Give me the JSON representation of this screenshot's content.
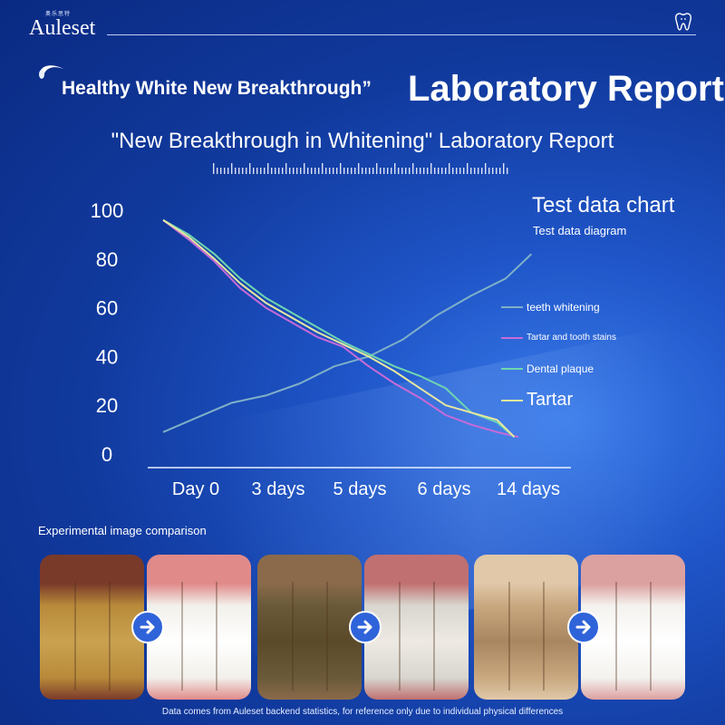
{
  "brand": {
    "logo_text": "Auleset",
    "logo_subtext": "奥乐思特"
  },
  "header": {
    "headline": "Healthy White New Breakthrough”",
    "report_title": "Laboratory Report",
    "subtitle": "\"New Breakthrough in Whitening\" Laboratory Report"
  },
  "chart_data": {
    "type": "line",
    "title": "Test data chart",
    "subtitle": "Test data diagram",
    "categories": [
      "Day 0",
      "3 days",
      "5 days",
      "6 days",
      "14 days"
    ],
    "ylim": [
      0,
      100
    ],
    "yticks": [
      "100",
      "80",
      "60",
      "40",
      "20",
      "0"
    ],
    "grid": false,
    "legend_position": "right",
    "series": [
      {
        "name": "teeth whitening",
        "color": "#7fb0c8",
        "x": [
          0,
          0.4,
          0.8,
          1.2,
          1.6,
          2.0,
          2.4,
          2.8,
          3.2,
          3.6,
          4.0,
          4.3
        ],
        "values": [
          9,
          15,
          21,
          24,
          29,
          36,
          40,
          47,
          57,
          65,
          72,
          82
        ]
      },
      {
        "name": "Tartar and tooth stains",
        "color": "#c76bd8",
        "x": [
          0,
          0.3,
          0.6,
          0.9,
          1.2,
          1.5,
          1.8,
          2.1,
          2.4,
          2.7,
          3.0,
          3.3,
          3.6,
          3.9,
          4.15
        ],
        "values": [
          96,
          88,
          79,
          68,
          60,
          54,
          48,
          44,
          36,
          29,
          23,
          16,
          12,
          9,
          7
        ]
      },
      {
        "name": "Dental plaque",
        "color": "#6fd6b0",
        "x": [
          0,
          0.3,
          0.6,
          0.9,
          1.2,
          1.5,
          1.8,
          2.1,
          2.4,
          2.7,
          3.0,
          3.3,
          3.6,
          3.9,
          4.1
        ],
        "values": [
          96,
          90,
          82,
          72,
          64,
          58,
          52,
          46,
          41,
          36,
          32,
          27,
          17,
          13,
          7
        ]
      },
      {
        "name": "Tartar",
        "color": "#e8e8a0",
        "x": [
          0,
          0.3,
          0.6,
          0.9,
          1.2,
          1.5,
          1.8,
          2.1,
          2.4,
          2.7,
          3.0,
          3.3,
          3.6,
          3.9,
          4.1
        ],
        "values": [
          96,
          89,
          80,
          70,
          62,
          56,
          50,
          45,
          40,
          34,
          27,
          20,
          17,
          14,
          7
        ]
      }
    ]
  },
  "comparison": {
    "label": "Experimental image comparison",
    "photos": [
      {
        "name": "before-1",
        "tones": [
          "#b88a3a",
          "#c9a250",
          "#7a3a2a"
        ]
      },
      {
        "name": "after-1",
        "tones": [
          "#f2f0ea",
          "#ffffff",
          "#e08a8a"
        ]
      },
      {
        "name": "before-2",
        "tones": [
          "#6a5a3a",
          "#5a4a2a",
          "#8a6a4a"
        ]
      },
      {
        "name": "after-2",
        "tones": [
          "#d8d6cf",
          "#eeeae3",
          "#c07070"
        ]
      },
      {
        "name": "before-3",
        "tones": [
          "#c9a880",
          "#a88760",
          "#e0c8a8"
        ]
      },
      {
        "name": "after-3",
        "tones": [
          "#f4f2ee",
          "#ffffff",
          "#dba0a0"
        ]
      }
    ]
  },
  "footnote": "Data comes from Auleset backend statistics, for reference only due to individual physical differences"
}
